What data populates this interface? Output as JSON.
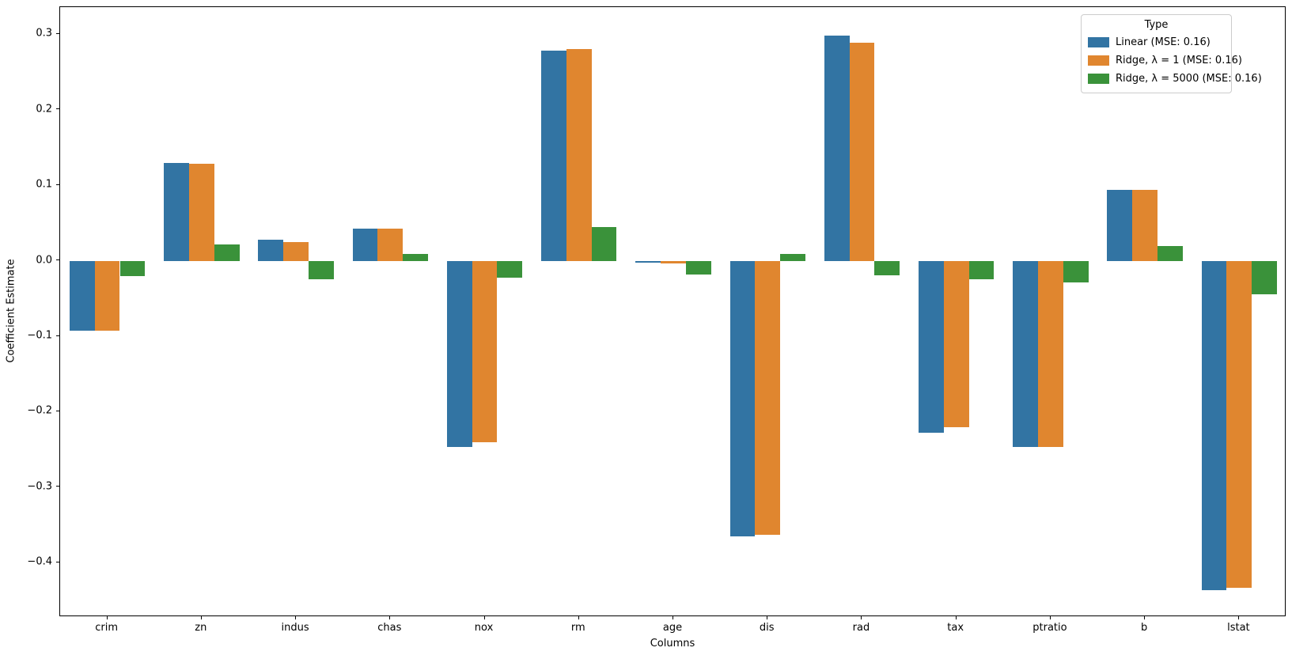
{
  "figure": {
    "background": "#ffffff",
    "text_color": "#000000"
  },
  "chart_data": {
    "type": "bar",
    "title": "",
    "xlabel": "Columns",
    "ylabel": "Coefficient Estimate",
    "categories": [
      "crim",
      "zn",
      "indus",
      "chas",
      "nox",
      "rm",
      "age",
      "dis",
      "rad",
      "tax",
      "ptratio",
      "b",
      "lstat"
    ],
    "series": [
      {
        "name": "Linear (MSE: 0.16)",
        "color": "#3274a3",
        "values": [
          -0.093,
          0.13,
          0.028,
          0.043,
          -0.247,
          0.278,
          -0.003,
          -0.365,
          0.298,
          -0.228,
          -0.247,
          0.094,
          -0.436
        ]
      },
      {
        "name": "Ridge, λ = 1 (MSE: 0.16)",
        "color": "#e0862f",
        "values": [
          -0.093,
          0.128,
          0.025,
          0.043,
          -0.24,
          0.28,
          -0.004,
          -0.363,
          0.289,
          -0.22,
          -0.247,
          0.094,
          -0.433
        ]
      },
      {
        "name": "Ridge, λ = 5000 (MSE: 0.16)",
        "color": "#3a923a",
        "values": [
          -0.02,
          0.022,
          -0.024,
          0.009,
          -0.022,
          0.045,
          -0.018,
          0.009,
          -0.019,
          -0.025,
          -0.029,
          0.02,
          -0.044
        ]
      }
    ],
    "ylim": [
      -0.472,
      0.336
    ],
    "yticks": [
      0.3,
      0.2,
      0.1,
      0.0,
      -0.1,
      -0.2,
      -0.3,
      -0.4
    ],
    "grid": false,
    "legend": {
      "title": "Type",
      "position": "upper right"
    }
  }
}
